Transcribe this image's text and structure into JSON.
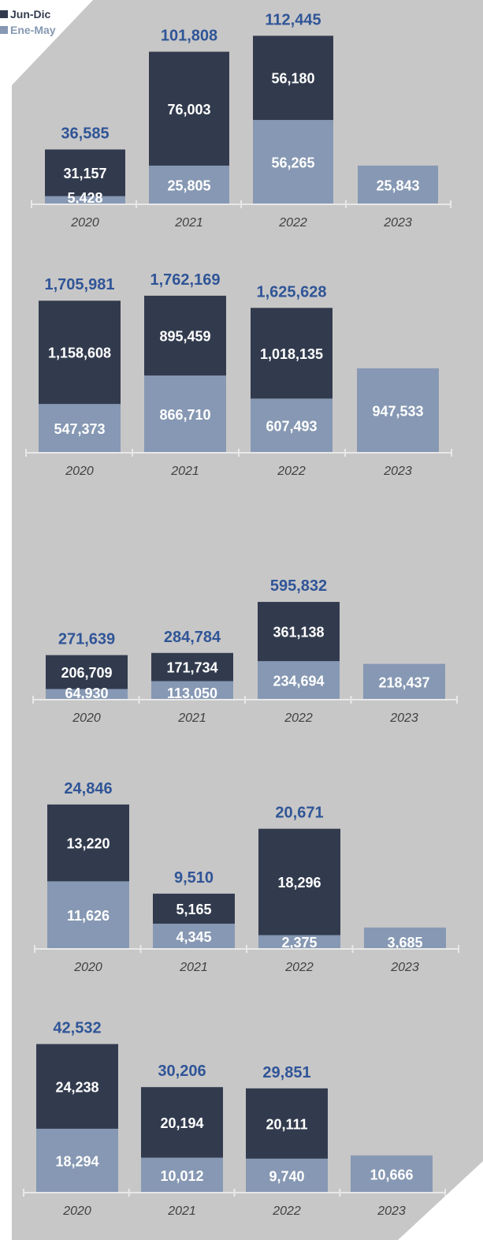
{
  "colors": {
    "background_panel": "#c8c7c7",
    "jun_dic": "#323b4e",
    "ene_may": "#8698b3",
    "total_label": "#2f5597",
    "inner_label": "#ffffff",
    "axis": "#e8e8e8",
    "year_label": "#404040"
  },
  "legend": [
    {
      "label": "Jun-Dic",
      "color": "#323b4e"
    },
    {
      "label": "Ene-May",
      "color": "#8698b3"
    }
  ],
  "chart_data": [
    {
      "type": "bar",
      "stacked": true,
      "categories": [
        "2020",
        "2021",
        "2022",
        "2023"
      ],
      "series": [
        {
          "name": "Ene-May",
          "values": [
            5428,
            25805,
            56265,
            25843
          ]
        },
        {
          "name": "Jun-Dic",
          "values": [
            31157,
            76003,
            56180,
            null
          ]
        }
      ],
      "totals": [
        36585,
        101808,
        112445,
        null
      ],
      "value_labels": {
        "ene_may": [
          "5,428",
          "25,805",
          "56,265",
          "25,843"
        ],
        "jun_dic": [
          "31,157",
          "76,003",
          "56,180",
          ""
        ],
        "totals": [
          "36,585",
          "101,808",
          "112,445",
          ""
        ]
      }
    },
    {
      "type": "bar",
      "stacked": true,
      "categories": [
        "2020",
        "2021",
        "2022",
        "2023"
      ],
      "series": [
        {
          "name": "Ene-May",
          "values": [
            547373,
            866710,
            607493,
            947533
          ]
        },
        {
          "name": "Jun-Dic",
          "values": [
            1158608,
            895459,
            1018135,
            null
          ]
        }
      ],
      "totals": [
        1705981,
        1762169,
        1625628,
        null
      ],
      "value_labels": {
        "ene_may": [
          "547,373",
          "866,710",
          "607,493",
          "947,533"
        ],
        "jun_dic": [
          "1,158,608",
          "895,459",
          "1,018,135",
          ""
        ],
        "totals": [
          "1,705,981",
          "1,762,169",
          "1,625,628",
          ""
        ]
      }
    },
    {
      "type": "bar",
      "stacked": true,
      "categories": [
        "2020",
        "2021",
        "2022",
        "2023"
      ],
      "series": [
        {
          "name": "Ene-May",
          "values": [
            64930,
            113050,
            234694,
            218437
          ]
        },
        {
          "name": "Jun-Dic",
          "values": [
            206709,
            171734,
            361138,
            null
          ]
        }
      ],
      "totals": [
        271639,
        284784,
        595832,
        null
      ],
      "value_labels": {
        "ene_may": [
          "64,930",
          "113,050",
          "234,694",
          "218,437"
        ],
        "jun_dic": [
          "206,709",
          "171,734",
          "361,138",
          ""
        ],
        "totals": [
          "271,639",
          "284,784",
          "595,832",
          ""
        ]
      }
    },
    {
      "type": "bar",
      "stacked": true,
      "categories": [
        "2020",
        "2021",
        "2022",
        "2023"
      ],
      "series": [
        {
          "name": "Ene-May",
          "values": [
            11626,
            4345,
            2375,
            3685
          ]
        },
        {
          "name": "Jun-Dic",
          "values": [
            13220,
            5165,
            18296,
            null
          ]
        }
      ],
      "totals": [
        24846,
        9510,
        20671,
        null
      ],
      "value_labels": {
        "ene_may": [
          "11,626",
          "4,345",
          "2,375",
          "3,685"
        ],
        "jun_dic": [
          "13,220",
          "5,165",
          "18,296",
          ""
        ],
        "totals": [
          "24,846",
          "9,510",
          "20,671",
          ""
        ]
      }
    },
    {
      "type": "bar",
      "stacked": true,
      "categories": [
        "2020",
        "2021",
        "2022",
        "2023"
      ],
      "series": [
        {
          "name": "Ene-May",
          "values": [
            18294,
            10012,
            9740,
            10666
          ]
        },
        {
          "name": "Jun-Dic",
          "values": [
            24238,
            20194,
            20111,
            null
          ]
        }
      ],
      "totals": [
        42532,
        30206,
        29851,
        null
      ],
      "value_labels": {
        "ene_may": [
          "18,294",
          "10,012",
          "9,740",
          "10,666"
        ],
        "jun_dic": [
          "24,238",
          "20,194",
          "20,111",
          ""
        ],
        "totals": [
          "42,532",
          "30,206",
          "29,851",
          ""
        ]
      }
    }
  ]
}
